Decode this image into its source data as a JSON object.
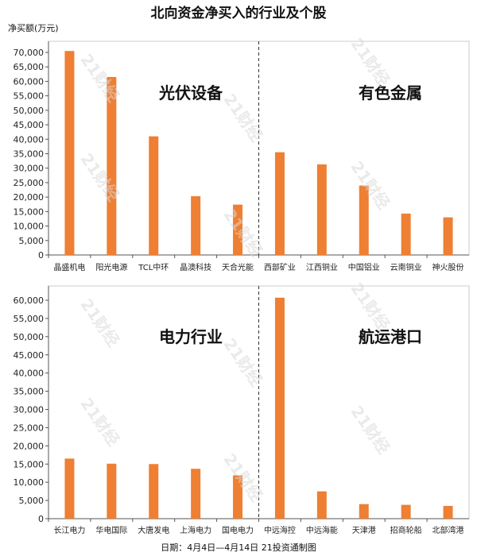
{
  "title": "北向资金净买入的行业及个股",
  "ylabel": "净买额(万元)",
  "footer": "日期：4月4日—4月14日 21投资通制图",
  "watermark": "21财经",
  "colors": {
    "bar": "#ee7f33",
    "axis": "#555555",
    "divider": "#333333"
  },
  "chart_data": [
    {
      "type": "bar",
      "ylabel": "净买额(万元)",
      "ylim": [
        0,
        70000
      ],
      "yticks": [
        0,
        5000,
        10000,
        15000,
        20000,
        25000,
        30000,
        35000,
        40000,
        45000,
        50000,
        55000,
        60000,
        65000,
        70000
      ],
      "sections": [
        "光伏设备",
        "有色金属"
      ],
      "categories": [
        "晶盛机电",
        "阳光电源",
        "TCL中环",
        "晶澳科技",
        "天合光能",
        "西部矿业",
        "江西铜业",
        "中国铝业",
        "云南铜业",
        "神火股份"
      ],
      "values": [
        70500,
        61500,
        41000,
        20300,
        17400,
        35500,
        31300,
        24000,
        14300,
        13000
      ]
    },
    {
      "type": "bar",
      "ylabel": "",
      "ylim": [
        0,
        60000
      ],
      "yticks": [
        0,
        5000,
        10000,
        15000,
        20000,
        25000,
        30000,
        35000,
        40000,
        45000,
        50000,
        55000,
        60000
      ],
      "sections": [
        "电力行业",
        "航运港口"
      ],
      "categories": [
        "长江电力",
        "华电国际",
        "大唐发电",
        "上海电力",
        "国电电力",
        "中远海控",
        "中远海能",
        "天津港",
        "招商轮船",
        "北部湾港"
      ],
      "values": [
        16500,
        15100,
        15000,
        13700,
        11900,
        60700,
        7500,
        4000,
        3800,
        3500
      ]
    }
  ]
}
